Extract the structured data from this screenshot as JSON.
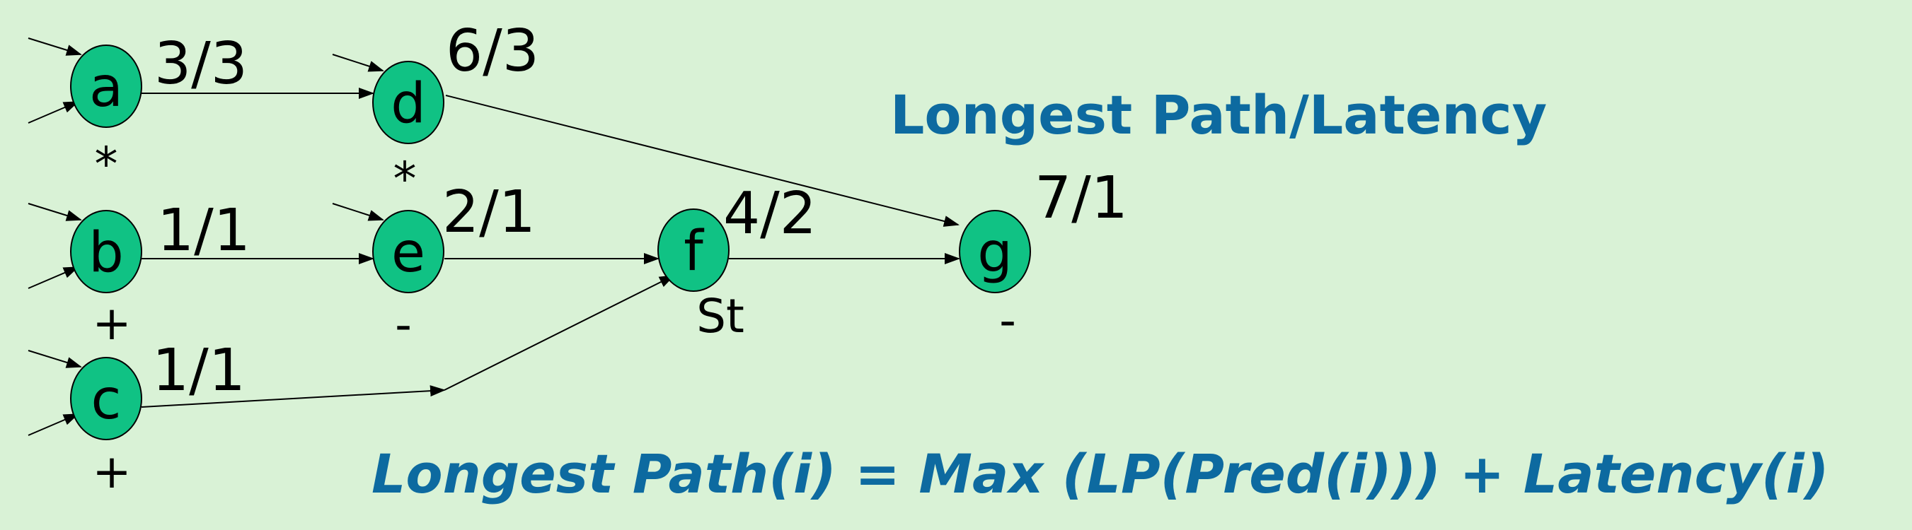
{
  "title": "Longest Path/Latency",
  "formula": "Longest Path(i) = Max (LP(Pred(i))) + Latency(i)",
  "colors": {
    "background": "#d9f2d6",
    "node_fill": "#10c284",
    "accent_text": "#0d6aa0"
  },
  "nodes": [
    {
      "id": "a",
      "label": "a",
      "ratio": "3/3",
      "op": "*"
    },
    {
      "id": "b",
      "label": "b",
      "ratio": "1/1",
      "op": "+"
    },
    {
      "id": "c",
      "label": "c",
      "ratio": "1/1",
      "op": "+"
    },
    {
      "id": "d",
      "label": "d",
      "ratio": "6/3",
      "op": "*"
    },
    {
      "id": "e",
      "label": "e",
      "ratio": "2/1",
      "op": "-"
    },
    {
      "id": "f",
      "label": "f",
      "ratio": "4/2",
      "op": "St"
    },
    {
      "id": "g",
      "label": "g",
      "ratio": "7/1",
      "op": "-"
    }
  ],
  "edges": [
    {
      "from": "a",
      "to": "d"
    },
    {
      "from": "d",
      "to": "g"
    },
    {
      "from": "b",
      "to": "e"
    },
    {
      "from": "e",
      "to": "f"
    },
    {
      "from": "c",
      "to": "f"
    },
    {
      "from": "f",
      "to": "g"
    }
  ]
}
